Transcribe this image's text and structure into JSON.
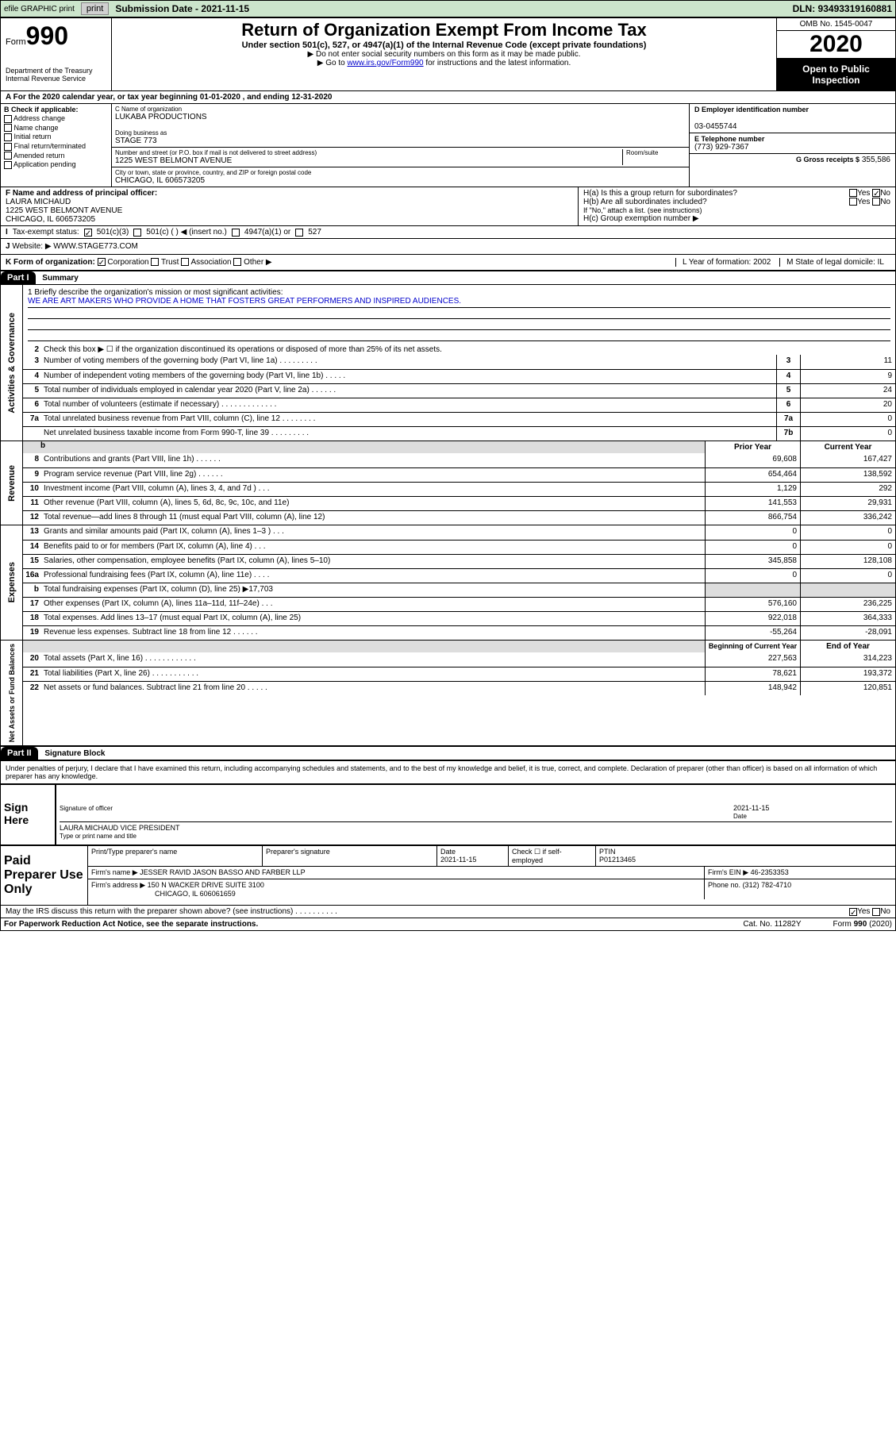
{
  "header": {
    "efile_label": "efile GRAPHIC print",
    "submission_label": "Submission Date - 2021-11-15",
    "dln": "DLN: 93493319160881"
  },
  "title_block": {
    "form_word": "Form",
    "form_num": "990",
    "title": "Return of Organization Exempt From Income Tax",
    "subtitle": "Under section 501(c), 527, or 4947(a)(1) of the Internal Revenue Code (except private foundations)",
    "note1": "▶ Do not enter social security numbers on this form as it may be made public.",
    "note2_pre": "▶ Go to ",
    "note2_link": "www.irs.gov/Form990",
    "note2_post": " for instructions and the latest information.",
    "omb": "OMB No. 1545-0047",
    "year": "2020",
    "open_public": "Open to Public Inspection",
    "dept": "Department of the Treasury\nInternal Revenue Service",
    "section_a": "A For the 2020 calendar year, or tax year beginning 01-01-2020    , and ending 12-31-2020"
  },
  "box_b": {
    "header": "B Check if applicable:",
    "items": [
      "Address change",
      "Name change",
      "Initial return",
      "Final return/terminated",
      "Amended return",
      "Application pending"
    ]
  },
  "box_c": {
    "name_label": "C Name of organization",
    "name": "LUKABA PRODUCTIONS",
    "dba_label": "Doing business as",
    "dba": "STAGE 773",
    "addr_label": "Number and street (or P.O. box if mail is not delivered to street address)",
    "room_label": "Room/suite",
    "addr": "1225 WEST BELMONT AVENUE",
    "city_label": "City or town, state or province, country, and ZIP or foreign postal code",
    "city": "CHICAGO, IL  606573205"
  },
  "box_d": {
    "ein_label": "D Employer identification number",
    "ein": "03-0455744",
    "phone_label": "E Telephone number",
    "phone": "(773) 929-7367",
    "gross_label": "G Gross receipts $",
    "gross": "355,586"
  },
  "box_f": {
    "label": "F  Name and address of principal officer:",
    "name": "LAURA MICHAUD",
    "addr1": "1225 WEST BELMONT AVENUE",
    "addr2": "CHICAGO, IL  606573205"
  },
  "box_h": {
    "ha": "H(a)  Is this a group return for subordinates?",
    "hb": "H(b)  Are all subordinates included?",
    "hb_note": "If \"No,\" attach a list. (see instructions)",
    "hc": "H(c)  Group exemption number ▶",
    "yes": "Yes",
    "no": "No"
  },
  "tax_exempt": {
    "label": "Tax-exempt status:",
    "opt1": "501(c)(3)",
    "opt2": "501(c) (  ) ◀ (insert no.)",
    "opt3": "4947(a)(1) or",
    "opt4": "527"
  },
  "j_row": {
    "label": "J",
    "text": "Website: ▶  WWW.STAGE773.COM"
  },
  "k_row": {
    "label": "K Form of organization:",
    "opts": [
      "Corporation",
      "Trust",
      "Association",
      "Other ▶"
    ],
    "l": "L Year of formation: 2002",
    "m": "M State of legal domicile: IL"
  },
  "part1": {
    "header": "Part I",
    "title": "Summary"
  },
  "mission": {
    "q1": "1  Briefly describe the organization's mission or most significant activities:",
    "text": "WE ARE ART MAKERS WHO PROVIDE A HOME THAT FOSTERS GREAT PERFORMERS AND INSPIRED AUDIENCES.",
    "q2": "Check this box ▶ ☐  if the organization discontinued its operations or disposed of more than 25% of its net assets."
  },
  "gov_lines": [
    {
      "n": "3",
      "t": "Number of voting members of the governing body (Part VI, line 1a)  .   .   .   .   .   .   .   .   .",
      "b": "3",
      "v": "11"
    },
    {
      "n": "4",
      "t": "Number of independent voting members of the governing body (Part VI, line 1b)  .   .   .   .   .",
      "b": "4",
      "v": "9"
    },
    {
      "n": "5",
      "t": "Total number of individuals employed in calendar year 2020 (Part V, line 2a)  .   .   .   .   .   .",
      "b": "5",
      "v": "24"
    },
    {
      "n": "6",
      "t": "Total number of volunteers (estimate if necessary)  .   .   .   .   .   .   .   .   .   .   .   .   .",
      "b": "6",
      "v": "20"
    },
    {
      "n": "7a",
      "t": "Total unrelated business revenue from Part VIII, column (C), line 12  .   .   .   .   .   .   .   .",
      "b": "7a",
      "v": "0"
    },
    {
      "n": "",
      "t": "Net unrelated business taxable income from Form 990-T, line 39  .   .   .   .   .   .   .   .   .",
      "b": "7b",
      "v": "0"
    }
  ],
  "two_col_headers": {
    "prior": "Prior Year",
    "current": "Current Year"
  },
  "revenue_label": "Revenue",
  "revenue_lines": [
    {
      "n": "8",
      "t": "Contributions and grants (Part VIII, line 1h)  .   .   .   .   .   .",
      "p": "69,608",
      "c": "167,427"
    },
    {
      "n": "9",
      "t": "Program service revenue (Part VIII, line 2g)  .   .   .   .   .   .",
      "p": "654,464",
      "c": "138,592"
    },
    {
      "n": "10",
      "t": "Investment income (Part VIII, column (A), lines 3, 4, and 7d )  .   .   .",
      "p": "1,129",
      "c": "292"
    },
    {
      "n": "11",
      "t": "Other revenue (Part VIII, column (A), lines 5, 6d, 8c, 9c, 10c, and 11e)",
      "p": "141,553",
      "c": "29,931"
    },
    {
      "n": "12",
      "t": "Total revenue—add lines 8 through 11 (must equal Part VIII, column (A), line 12)",
      "p": "866,754",
      "c": "336,242"
    }
  ],
  "expenses_label": "Expenses",
  "expense_lines": [
    {
      "n": "13",
      "t": "Grants and similar amounts paid (Part IX, column (A), lines 1–3 )  .   .   .",
      "p": "0",
      "c": "0"
    },
    {
      "n": "14",
      "t": "Benefits paid to or for members (Part IX, column (A), line 4)  .   .   .",
      "p": "0",
      "c": "0"
    },
    {
      "n": "15",
      "t": "Salaries, other compensation, employee benefits (Part IX, column (A), lines 5–10)",
      "p": "345,858",
      "c": "128,108"
    },
    {
      "n": "16a",
      "t": "Professional fundraising fees (Part IX, column (A), line 11e)  .   .   .   .",
      "p": "0",
      "c": "0"
    },
    {
      "n": "b",
      "t": "Total fundraising expenses (Part IX, column (D), line 25) ▶17,703",
      "p": "",
      "c": "",
      "grey": true
    },
    {
      "n": "17",
      "t": "Other expenses (Part IX, column (A), lines 11a–11d, 11f–24e)  .   .   .",
      "p": "576,160",
      "c": "236,225"
    },
    {
      "n": "18",
      "t": "Total expenses. Add lines 13–17 (must equal Part IX, column (A), line 25)",
      "p": "922,018",
      "c": "364,333"
    },
    {
      "n": "19",
      "t": "Revenue less expenses. Subtract line 18 from line 12  .   .   .   .   .   .",
      "p": "-55,264",
      "c": "-28,091"
    }
  ],
  "netassets_label": "Net Assets or Fund Balances",
  "na_headers": {
    "begin": "Beginning of Current Year",
    "end": "End of Year"
  },
  "na_lines": [
    {
      "n": "20",
      "t": "Total assets (Part X, line 16)  .   .   .   .   .   .   .   .   .   .   .   .",
      "p": "227,563",
      "c": "314,223"
    },
    {
      "n": "21",
      "t": "Total liabilities (Part X, line 26)  .   .   .   .   .   .   .   .   .   .   .",
      "p": "78,621",
      "c": "193,372"
    },
    {
      "n": "22",
      "t": "Net assets or fund balances. Subtract line 21 from line 20  .   .   .   .   .",
      "p": "148,942",
      "c": "120,851"
    }
  ],
  "part2": {
    "header": "Part II",
    "title": "Signature Block"
  },
  "penalty": "Under penalties of perjury, I declare that I have examined this return, including accompanying schedules and statements, and to the best of my knowledge and belief, it is true, correct, and complete. Declaration of preparer (other than officer) is based on all information of which preparer has any knowledge.",
  "sign": {
    "label": "Sign Here",
    "sig_officer": "Signature of officer",
    "date": "2021-11-15",
    "date_label": "Date",
    "name": "LAURA MICHAUD  VICE PRESIDENT",
    "name_label": "Type or print name and title"
  },
  "prep": {
    "label": "Paid Preparer Use Only",
    "h1": "Print/Type preparer's name",
    "h2": "Preparer's signature",
    "h3": "Date",
    "h3v": "2021-11-15",
    "h4": "Check ☐ if self-employed",
    "h5": "PTIN",
    "h5v": "P01213465",
    "firm_label": "Firm's name    ▶",
    "firm": "JESSER RAVID JASON BASSO AND FARBER LLP",
    "ein_label": "Firm's EIN ▶",
    "ein": "46-2353353",
    "addr_label": "Firm's address ▶",
    "addr1": "150 N WACKER DRIVE SUITE 3100",
    "addr2": "CHICAGO, IL  606061659",
    "phone_label": "Phone no.",
    "phone": "(312) 782-4710"
  },
  "discuss": {
    "text": "May the IRS discuss this return with the preparer shown above? (see instructions)  .   .   .   .   .   .   .   .   .   .",
    "yes": "Yes",
    "no": "No"
  },
  "footer": {
    "left": "For Paperwork Reduction Act Notice, see the separate instructions.",
    "cat": "Cat. No. 11282Y",
    "right": "Form 990 (2020)"
  },
  "gov_label": "Activities & Governance"
}
